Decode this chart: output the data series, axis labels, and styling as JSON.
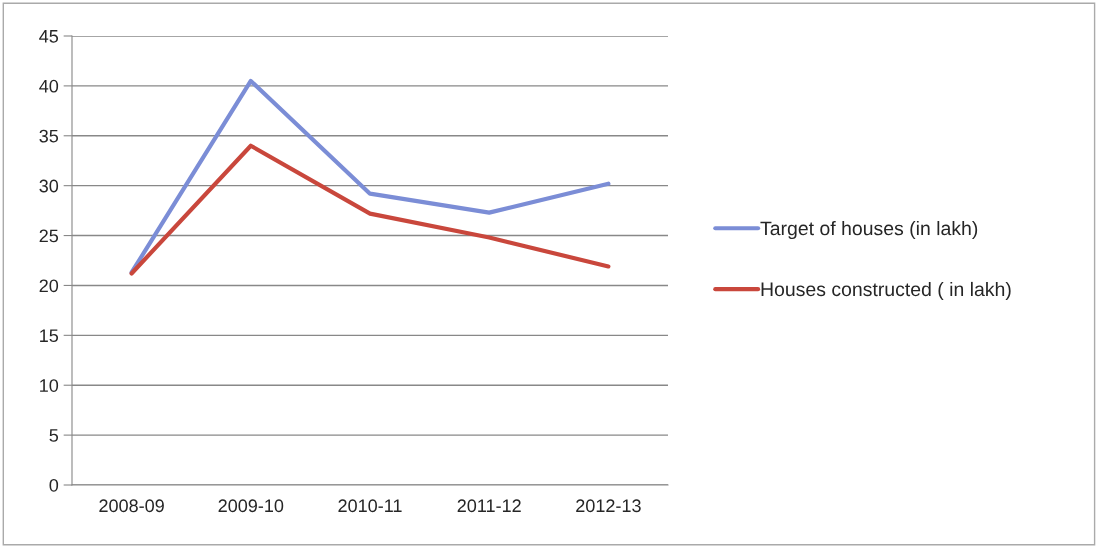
{
  "chart_data": {
    "type": "line",
    "categories": [
      "2008-09",
      "2009-10",
      "2010-11",
      "2011-12",
      "2012-13"
    ],
    "series": [
      {
        "name": "Target of houses (in lakh)",
        "color": "#7b8dd6",
        "values": [
          21.3,
          40.5,
          29.2,
          27.3,
          30.2
        ]
      },
      {
        "name": "Houses constructed ( in lakh)",
        "color": "#c9473c",
        "values": [
          21.2,
          34.0,
          27.2,
          24.8,
          21.9
        ]
      }
    ],
    "ylim": [
      0,
      45
    ],
    "yticks": [
      0,
      5,
      10,
      15,
      20,
      25,
      30,
      35,
      40,
      45
    ],
    "grid": "y",
    "legend": "right",
    "marker": "none",
    "line_style": "solid"
  }
}
